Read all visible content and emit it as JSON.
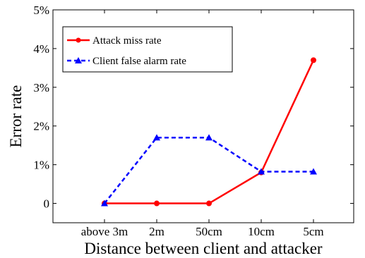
{
  "chart_data": {
    "type": "line",
    "categories": [
      "above 3m",
      "2m",
      "50cm",
      "10cm",
      "5cm"
    ],
    "xlabel": "Distance between client and attacker",
    "ylabel": "Error rate",
    "ylim": [
      -0.5,
      5
    ],
    "yticks": [
      0,
      1,
      2,
      3,
      4,
      5
    ],
    "ytick_labels": [
      "0",
      "1%",
      "2%",
      "3%",
      "4%",
      "5%"
    ],
    "grid": false,
    "legend_position": "top-left",
    "series": [
      {
        "name": "Attack miss rate",
        "values": [
          0,
          0,
          0,
          0.8,
          3.7
        ],
        "color": "#ff0000",
        "dash": "solid",
        "marker": "circle"
      },
      {
        "name": "Client false alarm rate",
        "values": [
          0,
          1.7,
          1.7,
          0.82,
          0.82
        ],
        "color": "#0000ff",
        "dash": "dashed",
        "marker": "triangle"
      }
    ]
  }
}
